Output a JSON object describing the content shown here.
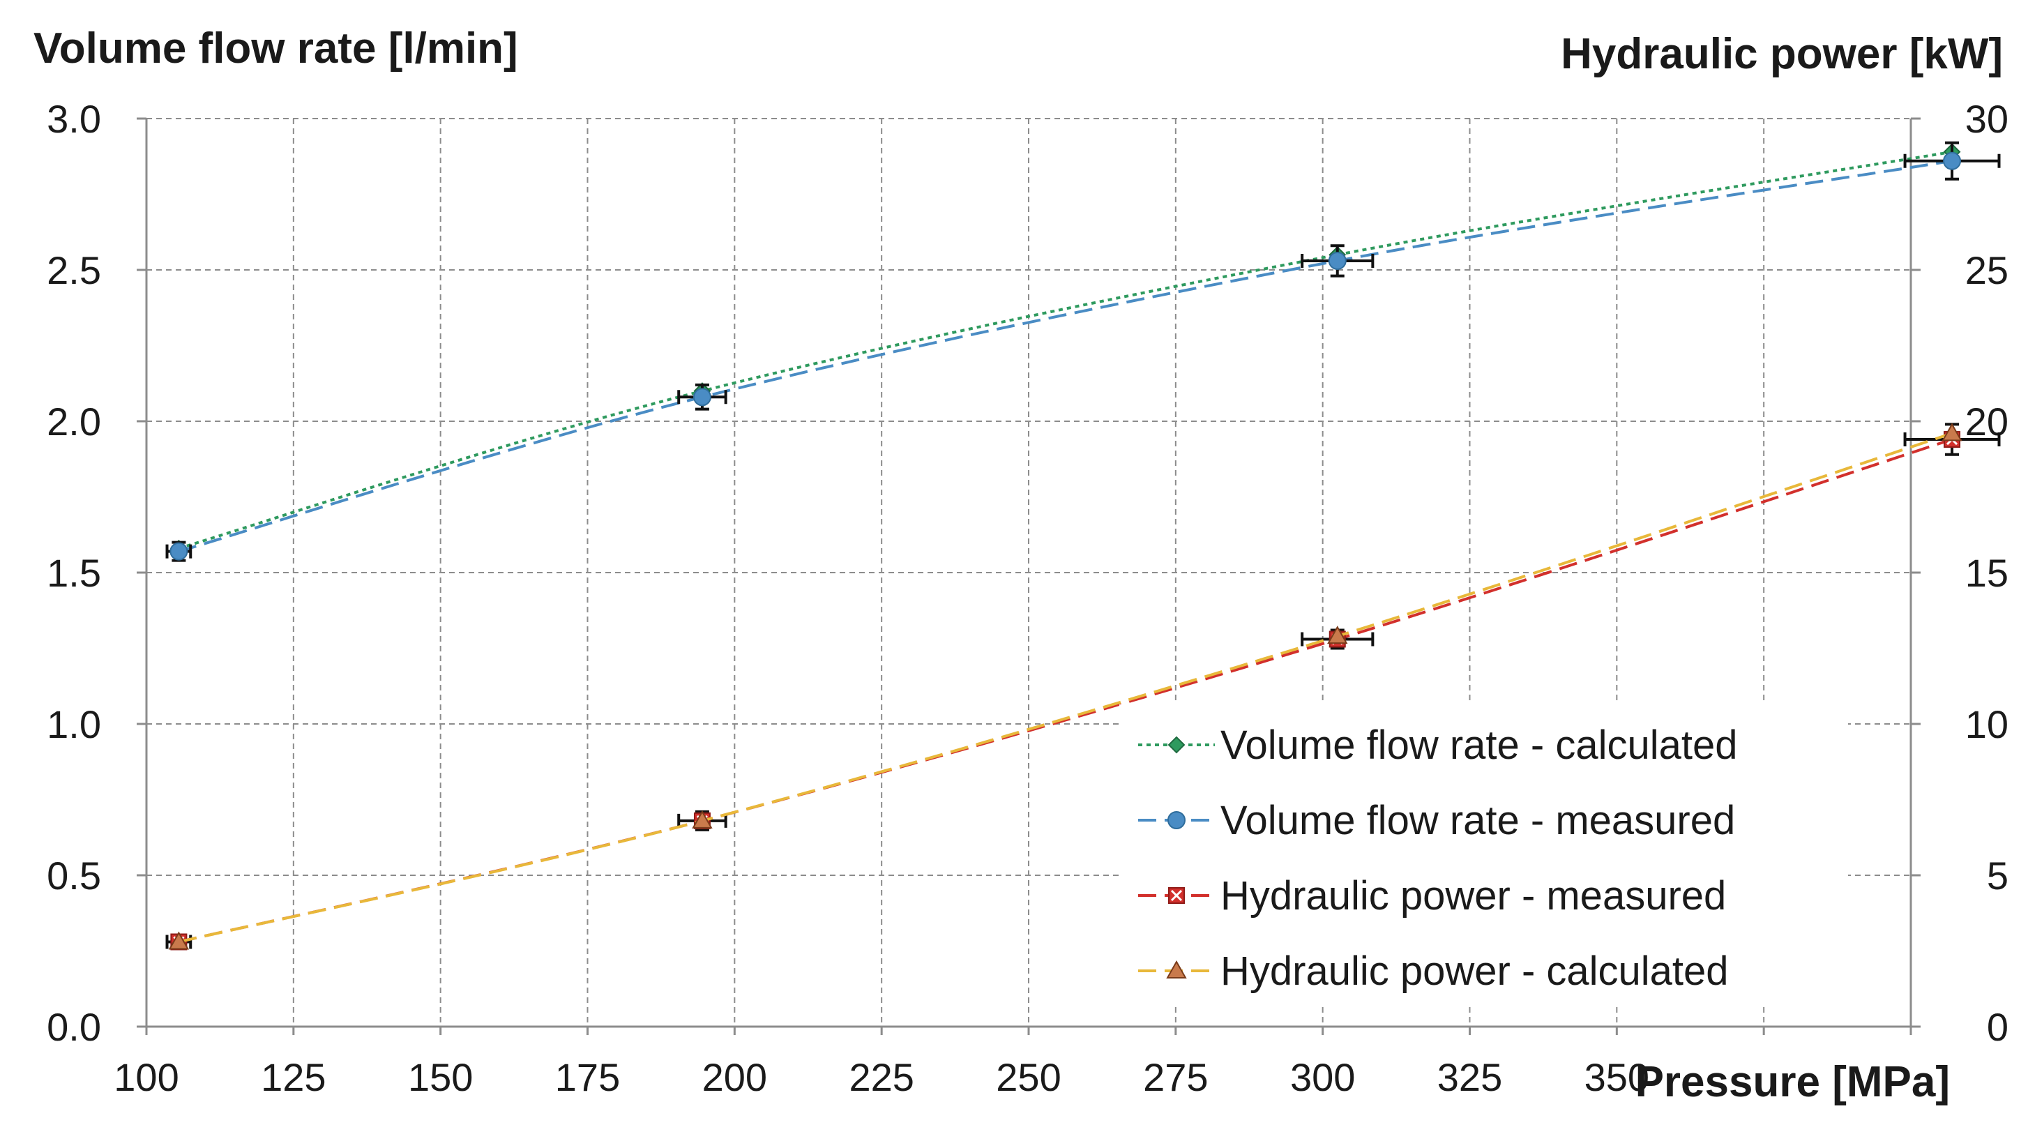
{
  "chart_data": {
    "type": "line",
    "title": "",
    "xlabel": "Pressure [MPa]",
    "ylabel_left": "Volume flow rate [l/min]",
    "ylabel_right": "Hydraulic power [kW]",
    "xlim": [
      100,
      400
    ],
    "ylim_left": [
      0,
      3
    ],
    "ylim_right": [
      0,
      30
    ],
    "x_ticks": [
      100,
      125,
      150,
      175,
      200,
      225,
      250,
      275,
      300,
      325,
      350
    ],
    "y_left_ticks": [
      "0.0",
      "0.5",
      "1.0",
      "1.5",
      "2.0",
      "2.5",
      "3.0"
    ],
    "y_right_ticks": [
      "0",
      "5",
      "10",
      "15",
      "20",
      "25",
      "30"
    ],
    "grid": true,
    "legend_position": "bottom-right",
    "series": [
      {
        "name": "Volume flow rate - calculated",
        "axis": "left",
        "x": [
          105.5,
          194.5,
          302.5,
          407
        ],
        "y": [
          1.58,
          2.1,
          2.55,
          2.89
        ],
        "color": "#2e9a5e",
        "marker": "diamond",
        "dash": "dot"
      },
      {
        "name": "Volume flow rate - measured",
        "axis": "left",
        "x": [
          105.5,
          194.5,
          302.5,
          407
        ],
        "y": [
          1.57,
          2.08,
          2.53,
          2.86
        ],
        "color": "#4a8cc4",
        "marker": "circle",
        "dash": "dash",
        "x_err": [
          2,
          4,
          6,
          8
        ],
        "y_err": [
          0.03,
          0.04,
          0.05,
          0.06
        ]
      },
      {
        "name": "Hydraulic power - measured",
        "axis": "right",
        "x": [
          105.5,
          194.5,
          302.5,
          407
        ],
        "y": [
          2.8,
          6.8,
          12.8,
          19.4
        ],
        "color": "#d2302c",
        "marker": "x-square",
        "dash": "dash",
        "x_err": [
          2,
          4,
          6,
          8
        ],
        "y_err": [
          0.2,
          0.3,
          0.3,
          0.5
        ]
      },
      {
        "name": "Hydraulic power - calculated",
        "axis": "right",
        "x": [
          105.5,
          194.5,
          302.5,
          407
        ],
        "y": [
          2.8,
          6.8,
          12.9,
          19.6
        ],
        "color": "#e8b83a",
        "marker": "triangle",
        "dash": "dash"
      }
    ]
  }
}
